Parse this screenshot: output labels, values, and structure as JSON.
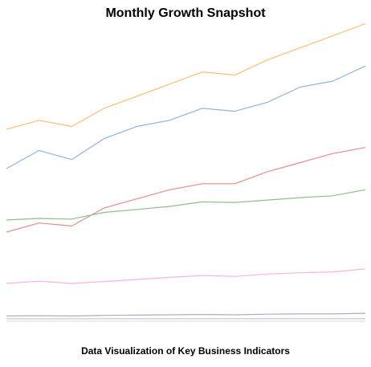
{
  "chart_data": {
    "type": "line",
    "title": "Monthly Growth Snapshot",
    "caption": "Data Visualization of Key Business Indicators",
    "xlabel": "",
    "ylabel": "",
    "grid": false,
    "legend": "none",
    "x": [
      1,
      2,
      3,
      4,
      5,
      6,
      7,
      8,
      9,
      10,
      11,
      12
    ],
    "ylim": [
      0,
      100
    ],
    "series": [
      {
        "color": "#fdbf6f",
        "values": [
          63,
          66,
          64,
          70,
          74,
          78,
          82,
          81,
          86,
          90,
          94,
          98
        ]
      },
      {
        "color": "#8fb6d8",
        "values": [
          50,
          56,
          53,
          60,
          64,
          66,
          70,
          69,
          72,
          77,
          79,
          84
        ]
      },
      {
        "color": "#e88b8b",
        "values": [
          29,
          32,
          31,
          37,
          40,
          43,
          45,
          45,
          49,
          52,
          55,
          57
        ]
      },
      {
        "color": "#8cc084",
        "values": [
          33,
          33.5,
          33.3,
          35.5,
          36.5,
          37.5,
          39,
          38.8,
          39.6,
          40.4,
          41,
          43
        ]
      },
      {
        "color": "#f4b3e0",
        "values": [
          12,
          12.7,
          12,
          12.6,
          13.3,
          14,
          14.6,
          14.3,
          15.1,
          15.5,
          15.8,
          16.8
        ]
      },
      {
        "color": "#b0a8c8",
        "values": [
          1.2,
          1.3,
          1.2,
          1.4,
          1.5,
          1.6,
          1.7,
          1.6,
          1.8,
          1.9,
          1.9,
          2.1
        ]
      },
      {
        "color": "#c9c9c9",
        "values": [
          0.3,
          0.3,
          0.3,
          0.3,
          0.3,
          0.3,
          0.3,
          0.3,
          0.3,
          0.3,
          0.3,
          0.3
        ]
      }
    ]
  }
}
